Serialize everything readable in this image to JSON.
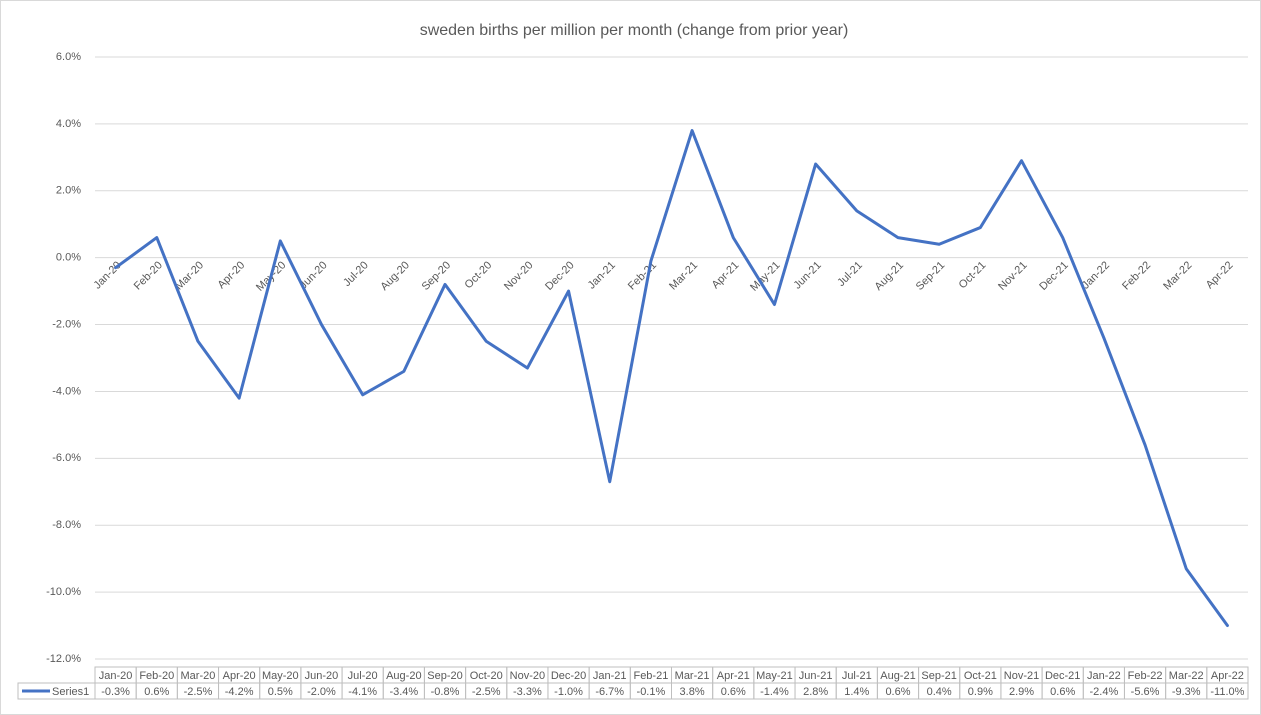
{
  "chart_data": {
    "type": "line",
    "title": "sweden births per million per month (change from prior year)",
    "categories": [
      "Jan-20",
      "Feb-20",
      "Mar-20",
      "Apr-20",
      "May-20",
      "Jun-20",
      "Jul-20",
      "Aug-20",
      "Sep-20",
      "Oct-20",
      "Nov-20",
      "Dec-20",
      "Jan-21",
      "Feb-21",
      "Mar-21",
      "Apr-21",
      "May-21",
      "Jun-21",
      "Jul-21",
      "Aug-21",
      "Sep-21",
      "Oct-21",
      "Nov-21",
      "Dec-21",
      "Jan-22",
      "Feb-22",
      "Mar-22",
      "Apr-22"
    ],
    "series": [
      {
        "name": "Series1",
        "color": "#4472c4",
        "values": [
          -0.3,
          0.6,
          -2.5,
          -4.2,
          0.5,
          -2.0,
          -4.1,
          -3.4,
          -0.8,
          -2.5,
          -3.3,
          -1.0,
          -6.7,
          -0.1,
          3.8,
          0.6,
          -1.4,
          2.8,
          1.4,
          0.6,
          0.4,
          0.9,
          2.9,
          0.6,
          -2.4,
          -5.6,
          -9.3,
          -11.0
        ],
        "value_labels": [
          "-0.3%",
          "0.6%",
          "-2.5%",
          "-4.2%",
          "0.5%",
          "-2.0%",
          "-4.1%",
          "-3.4%",
          "-0.8%",
          "-2.5%",
          "-3.3%",
          "-1.0%",
          "-6.7%",
          "-0.1%",
          "3.8%",
          "0.6%",
          "-1.4%",
          "2.8%",
          "1.4%",
          "0.6%",
          "0.4%",
          "0.9%",
          "2.9%",
          "0.6%",
          "-2.4%",
          "-5.6%",
          "-9.3%",
          "-11.0%"
        ]
      }
    ],
    "ylim": [
      -12,
      6
    ],
    "yticks": [
      {
        "value": -12,
        "label": "-12.0%"
      },
      {
        "value": -10,
        "label": "-10.0%"
      },
      {
        "value": -8,
        "label": "-8.0%"
      },
      {
        "value": -6,
        "label": "-6.0%"
      },
      {
        "value": -4,
        "label": "-4.0%"
      },
      {
        "value": -2,
        "label": "-2.0%"
      },
      {
        "value": 0,
        "label": "0.0%"
      },
      {
        "value": 2,
        "label": "2.0%"
      },
      {
        "value": 4,
        "label": "4.0%"
      },
      {
        "value": 6,
        "label": "6.0%"
      }
    ],
    "grid": true,
    "data_table": true
  }
}
